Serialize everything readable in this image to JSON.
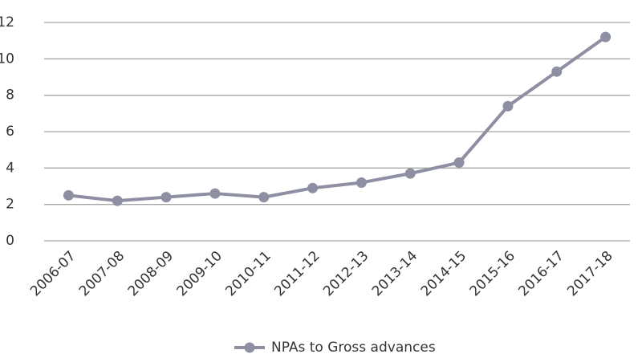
{
  "chart_data": {
    "type": "line",
    "categories": [
      "2006-07",
      "2007-08",
      "2008-09",
      "2009-10",
      "2010-11",
      "2011-12",
      "2012-13",
      "2013-14",
      "2014-15",
      "2015-16",
      "2016-17",
      "2017-18"
    ],
    "series": [
      {
        "name": "NPAs to Gross advances",
        "color": "#8e8fa3",
        "values": [
          2.5,
          2.2,
          2.4,
          2.6,
          2.4,
          2.9,
          3.2,
          3.7,
          4.3,
          7.4,
          9.3,
          11.2
        ]
      }
    ],
    "ylim": [
      0,
      12
    ],
    "yticks": [
      0,
      2,
      4,
      6,
      8,
      10,
      12
    ],
    "grid": true,
    "legend": "bottom"
  }
}
